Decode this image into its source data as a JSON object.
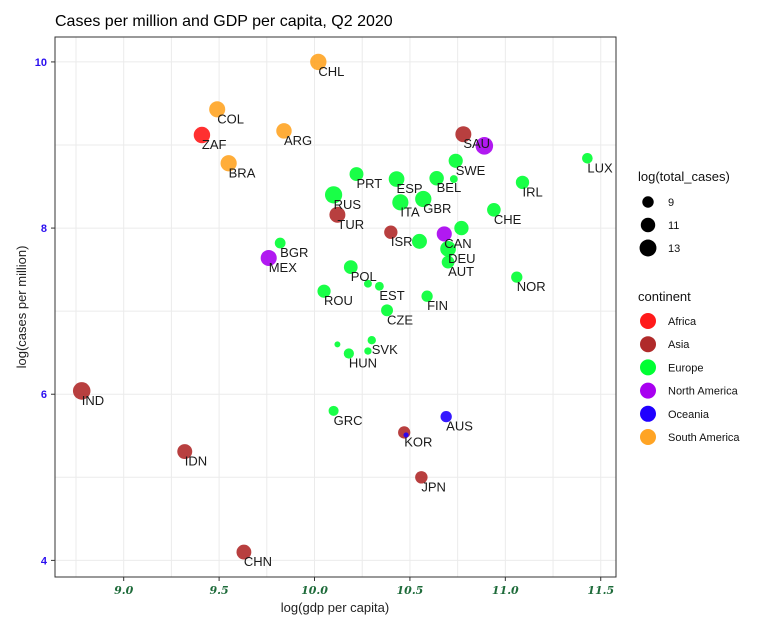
{
  "chart_data": {
    "type": "scatter",
    "title": "Cases per million and GDP per capita, Q2 2020",
    "xlabel": "log(gdp per capita)",
    "ylabel": "log(cases per million)",
    "xlim": [
      8.64,
      11.58
    ],
    "ylim": [
      3.8,
      10.3
    ],
    "xticks": [
      "9.0",
      "9.5",
      "10.0",
      "10.5",
      "11.0",
      "11.5"
    ],
    "xtick_values": [
      9.0,
      9.5,
      10.0,
      10.5,
      11.0,
      11.5
    ],
    "yticks": [
      "4",
      "6",
      "8",
      "10"
    ],
    "ytick_values": [
      4,
      6,
      8,
      10
    ],
    "grid": true,
    "size_legend": {
      "title": "log(total_cases)",
      "entries": [
        {
          "label": "9",
          "value": 9
        },
        {
          "label": "11",
          "value": 11
        },
        {
          "label": "13",
          "value": 13
        }
      ]
    },
    "color_legend": {
      "title": "continent",
      "position": "right",
      "entries": [
        {
          "label": "Africa",
          "color": "#ff1a1a"
        },
        {
          "label": "Asia",
          "color": "#b02a2a"
        },
        {
          "label": "Europe",
          "color": "#00ff33"
        },
        {
          "label": "North America",
          "color": "#a800f0"
        },
        {
          "label": "Oceania",
          "color": "#2000ff"
        },
        {
          "label": "South America",
          "color": "#ffa424"
        }
      ]
    },
    "points": [
      {
        "label": "CHL",
        "x": 10.02,
        "y": 10.0,
        "size": 12.5,
        "continent": "South America"
      },
      {
        "label": "COL",
        "x": 9.49,
        "y": 9.43,
        "size": 12.3,
        "continent": "South America"
      },
      {
        "label": "ZAF",
        "x": 9.41,
        "y": 9.12,
        "size": 12.6,
        "continent": "Africa"
      },
      {
        "label": "ARG",
        "x": 9.84,
        "y": 9.17,
        "size": 11.8,
        "continent": "South America"
      },
      {
        "label": "BRA",
        "x": 9.55,
        "y": 8.78,
        "size": 12.4,
        "continent": "South America"
      },
      {
        "label": "SAU",
        "x": 10.78,
        "y": 9.13,
        "size": 12.2,
        "continent": "Asia"
      },
      {
        "label": "",
        "x": 10.89,
        "y": 8.99,
        "size": 13.6,
        "continent": "North America"
      },
      {
        "label": "SWE",
        "x": 10.74,
        "y": 8.81,
        "size": 10.8,
        "continent": "Europe"
      },
      {
        "label": "",
        "x": 10.73,
        "y": 8.59,
        "size": 7.2,
        "continent": "Europe"
      },
      {
        "label": "PRT",
        "x": 10.22,
        "y": 8.65,
        "size": 10.6,
        "continent": "Europe"
      },
      {
        "label": "ESP",
        "x": 10.43,
        "y": 8.59,
        "size": 12.0,
        "continent": "Europe"
      },
      {
        "label": "BEL",
        "x": 10.64,
        "y": 8.6,
        "size": 11.0,
        "continent": "Europe"
      },
      {
        "label": "RUS",
        "x": 10.1,
        "y": 8.4,
        "size": 13.3,
        "continent": "Europe"
      },
      {
        "label": "TUR",
        "x": 10.12,
        "y": 8.16,
        "size": 12.2,
        "continent": "Asia"
      },
      {
        "label": "ITA",
        "x": 10.45,
        "y": 8.31,
        "size": 12.4,
        "continent": "Europe"
      },
      {
        "label": "GBR",
        "x": 10.57,
        "y": 8.35,
        "size": 12.5,
        "continent": "Europe"
      },
      {
        "label": "IRL",
        "x": 11.09,
        "y": 8.55,
        "size": 10.2,
        "continent": "Europe"
      },
      {
        "label": "LUX",
        "x": 11.43,
        "y": 8.84,
        "size": 8.5,
        "continent": "Europe"
      },
      {
        "label": "CHE",
        "x": 10.94,
        "y": 8.22,
        "size": 10.4,
        "continent": "Europe"
      },
      {
        "label": "ISR",
        "x": 10.4,
        "y": 7.95,
        "size": 10.2,
        "continent": "Asia"
      },
      {
        "label": "",
        "x": 10.55,
        "y": 7.84,
        "size": 11.4,
        "continent": "Europe"
      },
      {
        "label": "CAN",
        "x": 10.68,
        "y": 7.93,
        "size": 11.5,
        "continent": "North America"
      },
      {
        "label": "",
        "x": 10.77,
        "y": 8.0,
        "size": 10.9,
        "continent": "Europe"
      },
      {
        "label": "DEU",
        "x": 10.7,
        "y": 7.75,
        "size": 12.0,
        "continent": "Europe"
      },
      {
        "label": "AUT",
        "x": 10.7,
        "y": 7.59,
        "size": 9.8,
        "continent": "Europe"
      },
      {
        "label": "BGR",
        "x": 9.82,
        "y": 7.82,
        "size": 8.6,
        "continent": "Europe"
      },
      {
        "label": "MEX",
        "x": 9.76,
        "y": 7.64,
        "size": 12.3,
        "continent": "North America"
      },
      {
        "label": "POL",
        "x": 10.19,
        "y": 7.53,
        "size": 10.5,
        "continent": "Europe"
      },
      {
        "label": "",
        "x": 10.28,
        "y": 7.33,
        "size": 7.2,
        "continent": "Europe"
      },
      {
        "label": "EST",
        "x": 10.34,
        "y": 7.3,
        "size": 7.6,
        "continent": "Europe"
      },
      {
        "label": "ROU",
        "x": 10.05,
        "y": 7.24,
        "size": 10.1,
        "continent": "Europe"
      },
      {
        "label": "FIN",
        "x": 10.59,
        "y": 7.18,
        "size": 8.9,
        "continent": "Europe"
      },
      {
        "label": "CZE",
        "x": 10.38,
        "y": 7.01,
        "size": 9.3,
        "continent": "Europe"
      },
      {
        "label": "NOR",
        "x": 11.06,
        "y": 7.41,
        "size": 8.9,
        "continent": "Europe"
      },
      {
        "label": "SVK",
        "x": 10.3,
        "y": 6.65,
        "size": 7.4,
        "continent": "Europe"
      },
      {
        "label": "",
        "x": 10.12,
        "y": 6.6,
        "size": 6.5,
        "continent": "Europe"
      },
      {
        "label": "HUN",
        "x": 10.18,
        "y": 6.49,
        "size": 8.3,
        "continent": "Europe"
      },
      {
        "label": "",
        "x": 10.28,
        "y": 6.52,
        "size": 7.0,
        "continent": "Europe"
      },
      {
        "label": "GRC",
        "x": 10.1,
        "y": 5.8,
        "size": 8.2,
        "continent": "Europe"
      },
      {
        "label": "AUS",
        "x": 10.69,
        "y": 5.73,
        "size": 8.9,
        "continent": "Oceania"
      },
      {
        "label": "KOR",
        "x": 10.47,
        "y": 5.54,
        "size": 9.5,
        "continent": "Asia"
      },
      {
        "label": "",
        "x": 10.48,
        "y": 5.51,
        "size": 6.3,
        "continent": "Oceania"
      },
      {
        "label": "JPN",
        "x": 10.56,
        "y": 5.0,
        "size": 9.6,
        "continent": "Asia"
      },
      {
        "label": "IND",
        "x": 8.78,
        "y": 6.04,
        "size": 13.6,
        "continent": "Asia"
      },
      {
        "label": "IDN",
        "x": 9.32,
        "y": 5.31,
        "size": 11.4,
        "continent": "Asia"
      },
      {
        "label": "CHN",
        "x": 9.63,
        "y": 4.1,
        "size": 11.3,
        "continent": "Asia"
      }
    ]
  }
}
